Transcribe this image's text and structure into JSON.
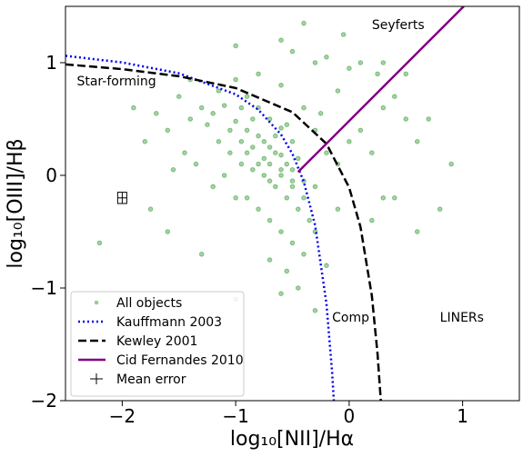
{
  "chart_data": {
    "type": "scatter",
    "x_label": "log₁₀[NII]/Hα",
    "y_label": "log₁₀[OIII]/Hβ",
    "xlim": [
      -2.5,
      1.5
    ],
    "ylim": [
      -2,
      1.5
    ],
    "xticks": [
      {
        "value": -2,
        "label": "−2"
      },
      {
        "value": -1,
        "label": "−1"
      },
      0,
      1
    ],
    "yticks": [
      {
        "value": -2,
        "label": "−2"
      },
      {
        "value": -1,
        "label": "−1"
      },
      0,
      1
    ],
    "legend": "lower left",
    "annotations": [
      {
        "text": "Star-forming",
        "x": -2.4,
        "y": 0.8
      },
      {
        "text": "Seyferts",
        "x": 0.2,
        "y": 1.3
      },
      {
        "text": "Comp",
        "x": -0.15,
        "y": -1.3
      },
      {
        "text": "LINERs",
        "x": 0.8,
        "y": -1.3
      }
    ],
    "series": [
      {
        "name": "All objects",
        "kind": "points",
        "color": "#008000",
        "x": [
          -1.2,
          -1.1,
          -1.0,
          -0.9,
          -0.8,
          -0.7,
          -0.6,
          -0.5,
          -0.4,
          -1.15,
          -1.05,
          -0.95,
          -0.85,
          -0.75,
          -0.65,
          -0.55,
          -0.45,
          -0.35,
          -1.25,
          -1.3,
          -0.9,
          -0.8,
          -0.7,
          -0.6,
          -0.5,
          -0.7,
          -0.6,
          -0.5,
          -0.4,
          -0.3,
          -1.4,
          -1.5,
          -1.6,
          -1.7,
          -1.8,
          -1.45,
          -1.35,
          -1.55,
          -1.0,
          -0.8,
          -0.6,
          -0.4,
          -0.3,
          -0.2,
          -0.1,
          0.0,
          -0.9,
          -0.8,
          -0.7,
          -0.6,
          -0.5,
          -0.4,
          -0.55,
          -0.45,
          -0.7,
          0.1,
          0.2,
          0.3,
          0.4,
          0.5,
          0.6,
          0.7,
          0.4,
          0.2,
          0.3,
          -0.3,
          -0.5,
          -0.2,
          0.0,
          -0.1,
          -0.6,
          -1.0,
          -0.4,
          0.1,
          0.3,
          -1.1,
          -1.2,
          -1.0,
          -0.9,
          -0.75,
          -0.65,
          -0.55,
          -0.85,
          -0.95,
          -1.05,
          -0.75,
          -0.65,
          -0.55,
          -0.45,
          -0.8,
          -0.7,
          -0.6,
          -0.5,
          -0.85,
          -0.95,
          -1.75,
          -1.9,
          -2.2,
          -1.6,
          -1.3,
          -1.0,
          -0.6,
          -0.3,
          0.5,
          0.9,
          0.8,
          0.6,
          -0.2,
          -0.1,
          -0.3,
          -0.25,
          -1.15,
          -1.4,
          0.25,
          -0.05
        ],
        "values": [
          0.55,
          0.62,
          0.48,
          0.4,
          0.35,
          0.25,
          0.18,
          0.05,
          -0.05,
          0.3,
          0.2,
          0.1,
          0.05,
          0.0,
          -0.1,
          -0.2,
          -0.3,
          -0.4,
          0.45,
          0.6,
          0.7,
          0.6,
          0.5,
          0.42,
          0.3,
          -0.05,
          0.0,
          -0.1,
          -0.2,
          -0.5,
          0.5,
          0.7,
          0.4,
          0.55,
          0.3,
          0.2,
          0.1,
          0.05,
          0.85,
          0.9,
          0.8,
          0.6,
          0.4,
          0.2,
          0.1,
          0.3,
          -0.2,
          -0.3,
          -0.4,
          -0.5,
          -0.6,
          -0.7,
          -0.85,
          -1.0,
          -0.75,
          0.4,
          0.2,
          0.6,
          0.7,
          0.5,
          0.3,
          0.5,
          -0.2,
          -0.4,
          -0.2,
          1.0,
          1.1,
          1.05,
          0.95,
          0.75,
          1.2,
          1.15,
          1.35,
          1.0,
          1.0,
          0.0,
          -0.1,
          -0.2,
          0.2,
          0.3,
          0.35,
          0.45,
          0.5,
          0.6,
          0.4,
          0.15,
          0.2,
          0.1,
          0.15,
          0.1,
          0.1,
          0.05,
          -0.05,
          0.25,
          0.3,
          -0.3,
          0.6,
          -0.6,
          -0.5,
          -0.7,
          -1.1,
          -1.05,
          -1.2,
          0.9,
          0.1,
          -0.3,
          -0.5,
          -0.8,
          -0.3,
          -0.1,
          0.55,
          0.75,
          0.85,
          0.9,
          1.25
        ]
      },
      {
        "name": "Kauffmann 2003",
        "kind": "line",
        "dash": "dotted",
        "color": "#0000ee",
        "x": [
          -2.5,
          -2.0,
          -1.5,
          -1.0,
          -0.8,
          -0.6,
          -0.5,
          -0.4,
          -0.3,
          -0.2,
          -0.15,
          -0.135
        ],
        "values": [
          1.061,
          1.002,
          0.906,
          0.719,
          0.582,
          0.362,
          0.191,
          -0.056,
          -0.443,
          -1.14,
          -1.75,
          -2.0
        ]
      },
      {
        "name": "Kewley 2001",
        "kind": "line",
        "dash": "dashed",
        "color": "#000000",
        "x": [
          -2.5,
          -2.0,
          -1.5,
          -1.0,
          -0.5,
          -0.2,
          0.0,
          0.1,
          0.2,
          0.25,
          0.279
        ],
        "values": [
          0.985,
          0.943,
          0.88,
          0.775,
          0.561,
          0.28,
          -0.108,
          -0.459,
          -1.069,
          -1.583,
          -2.0
        ]
      },
      {
        "name": "Cid Fernandes 2010",
        "kind": "line",
        "dash": "solid",
        "color": "#800080",
        "x": [
          -0.45,
          1.01
        ],
        "values": [
          0.03,
          1.5
        ]
      },
      {
        "name": "Mean error",
        "kind": "errorbar",
        "color": "#000000",
        "x": [
          -2.0
        ],
        "values": [
          -0.2
        ],
        "xerr": [
          0.04
        ],
        "yerr": [
          0.05
        ]
      }
    ]
  }
}
